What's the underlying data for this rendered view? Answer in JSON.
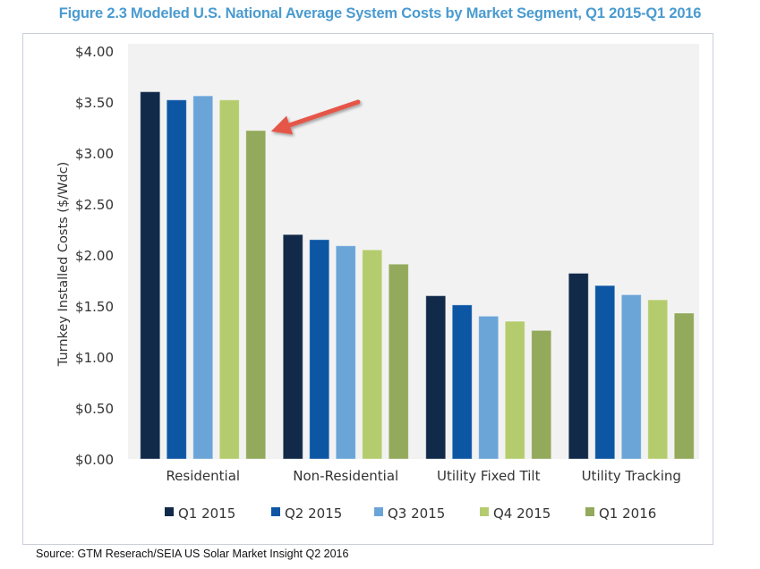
{
  "chart_data": {
    "type": "bar",
    "title": "Figure 2.3 Modeled U.S. National Average System Costs by Market Segment, Q1 2015-Q1 2016",
    "xlabel": "",
    "ylabel": "Turnkey Installed Costs ($/Wdc)",
    "ylim": [
      0,
      4
    ],
    "yticks": [
      0,
      0.5,
      1,
      1.5,
      2,
      2.5,
      3,
      3.5,
      4
    ],
    "ytick_labels": [
      "$0.00",
      "$0.50",
      "$1.00",
      "$1.50",
      "$2.00",
      "$2.50",
      "$3.00",
      "$3.50",
      "$4.00"
    ],
    "grid": false,
    "legend_position": "bottom",
    "categories": [
      "Residential",
      "Non-Residential",
      "Utility Fixed Tilt",
      "Utility Tracking"
    ],
    "series": [
      {
        "name": "Q1 2015",
        "color": "#112a4a",
        "values": [
          3.6,
          2.2,
          1.6,
          1.82
        ]
      },
      {
        "name": "Q2 2015",
        "color": "#0d56a4",
        "values": [
          3.52,
          2.15,
          1.51,
          1.7
        ]
      },
      {
        "name": "Q3 2015",
        "color": "#6ba5d8",
        "values": [
          3.56,
          2.09,
          1.4,
          1.61
        ]
      },
      {
        "name": "Q4 2015",
        "color": "#b5cc6e",
        "values": [
          3.52,
          2.05,
          1.35,
          1.56
        ]
      },
      {
        "name": "Q1 2016",
        "color": "#93a95c",
        "values": [
          3.22,
          1.91,
          1.26,
          1.43
        ]
      }
    ],
    "annotations": [
      {
        "type": "arrow",
        "color": "#e5574a",
        "points_to": {
          "category": "Residential",
          "series": "Q1 2016"
        }
      }
    ],
    "plot_background": "#f2f2f2"
  },
  "source": "Source: GTM Reserach/SEIA US Solar Market Insight Q2 2016"
}
